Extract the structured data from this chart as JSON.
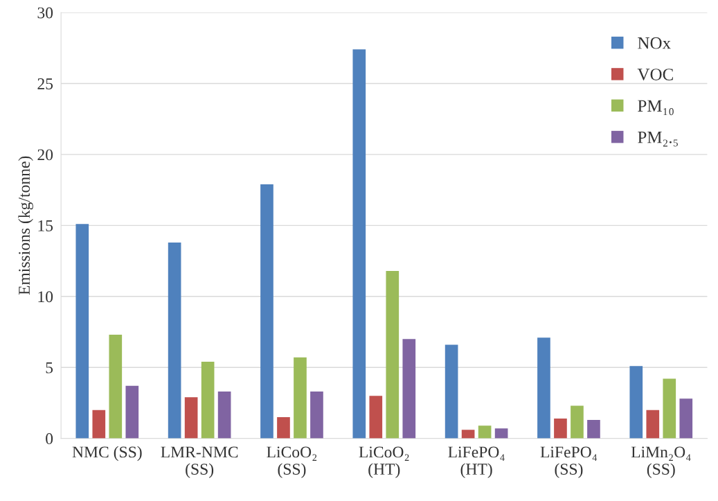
{
  "chart_data": {
    "type": "bar",
    "ylabel": "Emissions (kg/tonne)",
    "categories": [
      "NMC (SS)",
      "LMR-NMC\n(SS)",
      "LiCoO₂\n(SS)",
      "LiCoO₂\n(HT)",
      "LiFePO₄\n(HT)",
      "LiFePO₄\n(SS)",
      "LiMn₂O₄\n(SS)"
    ],
    "series": [
      {
        "name": "NOx",
        "color": "#4f81bd",
        "values": [
          15.1,
          13.8,
          17.9,
          27.4,
          6.6,
          7.1,
          5.1
        ]
      },
      {
        "name": "VOC",
        "color": "#c0504d",
        "values": [
          2.0,
          2.9,
          1.5,
          3.0,
          0.6,
          1.4,
          2.0
        ]
      },
      {
        "name": "PM₁₀",
        "color": "#9bbb59",
        "values": [
          7.3,
          5.4,
          5.7,
          11.8,
          0.9,
          2.3,
          4.2
        ]
      },
      {
        "name": "PM₂.₅",
        "color": "#8064a2",
        "values": [
          3.7,
          3.3,
          3.3,
          7.0,
          0.7,
          1.3,
          2.8
        ]
      }
    ],
    "ylim": [
      0,
      30
    ],
    "yticks": [
      0,
      5,
      10,
      15,
      20,
      25,
      30
    ],
    "grid": "y",
    "legend": "top right"
  }
}
